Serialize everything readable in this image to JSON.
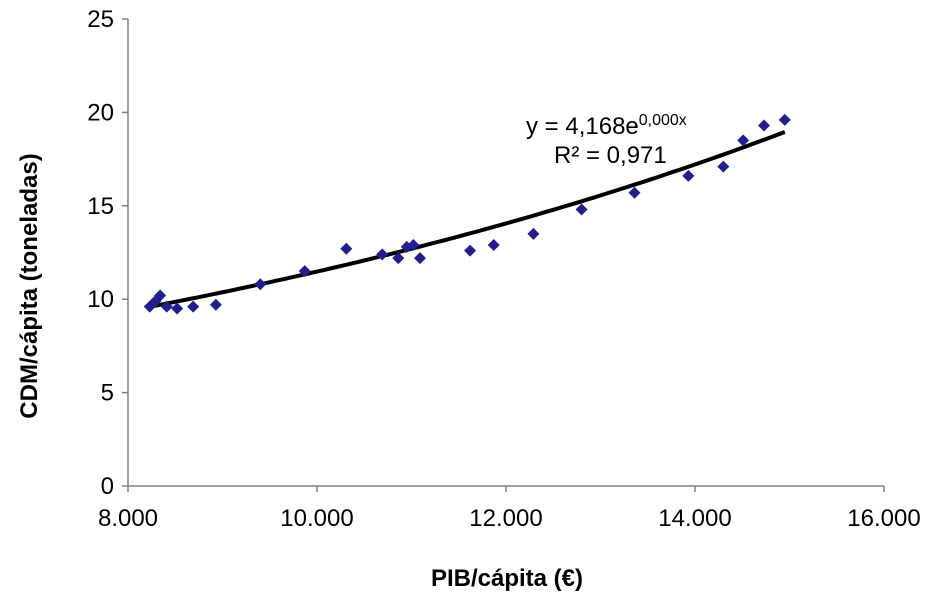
{
  "chart_data": {
    "type": "scatter",
    "title": "",
    "xlabel": "PIB/cápita (€)",
    "ylabel": "CDM/cápita (toneladas)",
    "xlim": [
      8000,
      16000
    ],
    "ylim": [
      0,
      25
    ],
    "x_ticks": [
      8000,
      10000,
      12000,
      14000,
      16000
    ],
    "x_tick_labels": [
      "8.000",
      "10.000",
      "12.000",
      "14.000",
      "16.000"
    ],
    "y_ticks": [
      0,
      5,
      10,
      15,
      20,
      25
    ],
    "y_tick_labels": [
      "0",
      "5",
      "10",
      "15",
      "20",
      "25"
    ],
    "grid": false,
    "marker": "diamond",
    "marker_color": "#1f1f8f",
    "trendline_color": "#000000",
    "points": [
      {
        "x": 8230,
        "y": 9.6
      },
      {
        "x": 8290,
        "y": 9.9
      },
      {
        "x": 8340,
        "y": 10.2
      },
      {
        "x": 8410,
        "y": 9.6
      },
      {
        "x": 8520,
        "y": 9.5
      },
      {
        "x": 8690,
        "y": 9.6
      },
      {
        "x": 8930,
        "y": 9.7
      },
      {
        "x": 9400,
        "y": 10.8
      },
      {
        "x": 9870,
        "y": 11.5
      },
      {
        "x": 10310,
        "y": 12.7
      },
      {
        "x": 10690,
        "y": 12.4
      },
      {
        "x": 10860,
        "y": 12.2
      },
      {
        "x": 10950,
        "y": 12.8
      },
      {
        "x": 11020,
        "y": 12.9
      },
      {
        "x": 11090,
        "y": 12.2
      },
      {
        "x": 11620,
        "y": 12.6
      },
      {
        "x": 11870,
        "y": 12.9
      },
      {
        "x": 12290,
        "y": 13.5
      },
      {
        "x": 12800,
        "y": 14.8
      },
      {
        "x": 13360,
        "y": 15.7
      },
      {
        "x": 13930,
        "y": 16.6
      },
      {
        "x": 14300,
        "y": 17.1
      },
      {
        "x": 14510,
        "y": 18.5
      },
      {
        "x": 14730,
        "y": 19.3
      },
      {
        "x": 14950,
        "y": 19.6
      }
    ],
    "trendline": {
      "type": "exponential",
      "equation_prefix": "y = 4,168e",
      "equation_exponent": "0,000x",
      "r_squared_label": "R² = 0,971",
      "coef_a": 4.168,
      "coef_b": 0.0001013,
      "x_range": [
        8230,
        14950
      ]
    }
  }
}
